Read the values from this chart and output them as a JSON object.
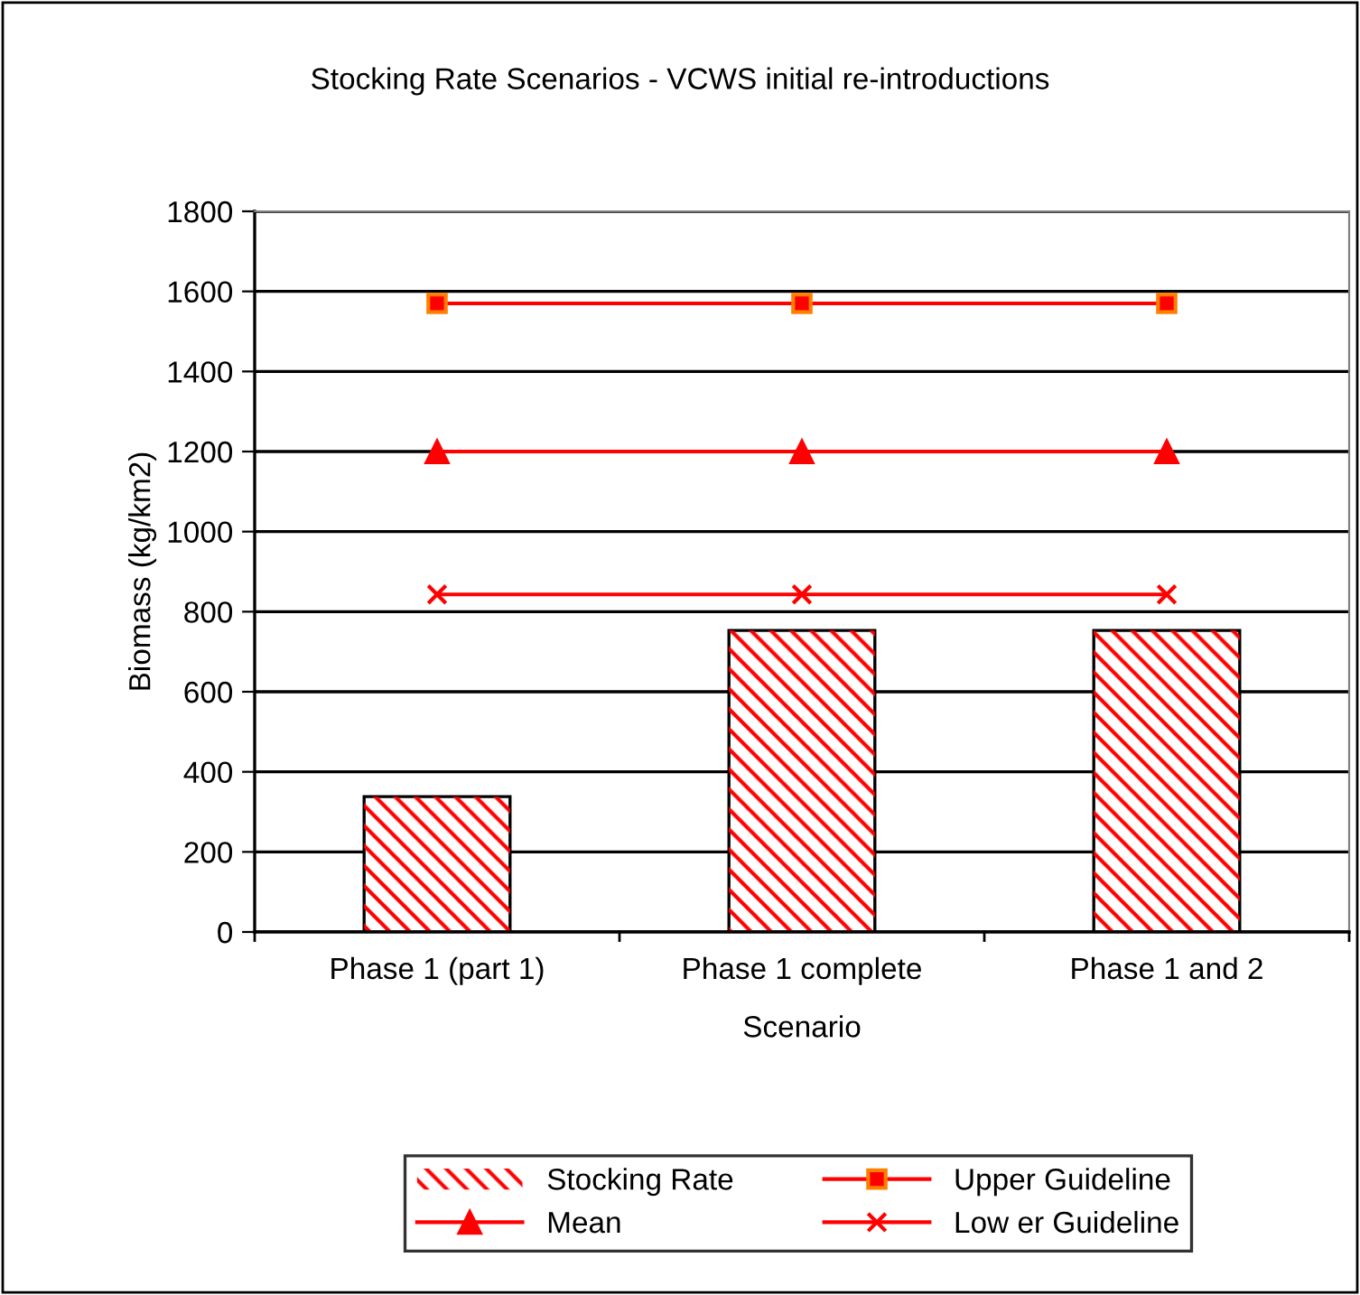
{
  "chart_data": {
    "type": "bar",
    "title": "Stocking Rate Scenarios - VCWS initial re-introductions",
    "xlabel": "Scenario",
    "ylabel": "Biomass (kg/km2)",
    "categories": [
      "Phase 1 (part 1)",
      "Phase 1 complete",
      "Phase 1 and 2"
    ],
    "series": [
      {
        "name": "Stocking Rate",
        "color": "#ff0000",
        "values": [
          338,
          753,
          753
        ]
      },
      {
        "name": "Upper Guideline",
        "type": "line",
        "color": "#ff0000",
        "marker": "square",
        "values": [
          1570,
          1570,
          1570
        ]
      },
      {
        "name": "Mean",
        "type": "line",
        "color": "#ff0000",
        "marker": "triangle",
        "values": [
          1200,
          1200,
          1200
        ]
      },
      {
        "name": "Low er Guideline",
        "type": "line",
        "color": "#ff0000",
        "marker": "cross",
        "values": [
          843,
          843,
          843
        ]
      }
    ],
    "ylim": [
      0,
      1800
    ],
    "yticks": [
      0,
      200,
      400,
      600,
      800,
      1000,
      1200,
      1400,
      1600,
      1800
    ],
    "grid": "y",
    "legend": "bottom"
  }
}
